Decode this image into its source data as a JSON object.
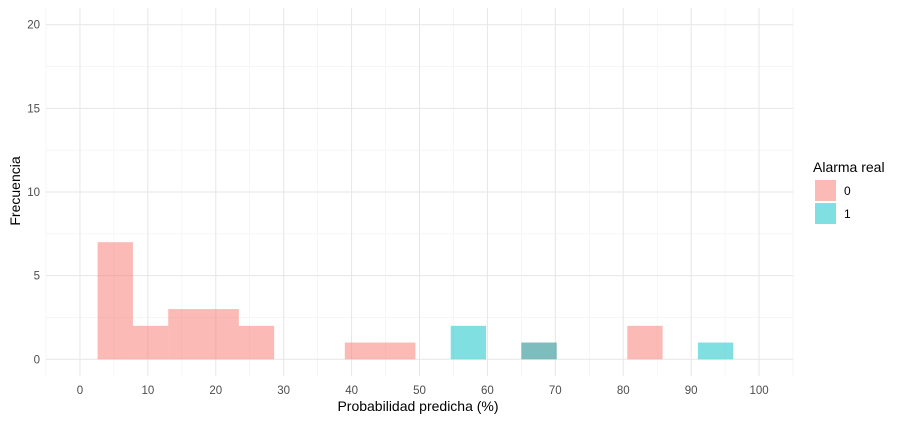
{
  "chart_data": {
    "type": "histogram",
    "xlabel": "Probabilidad predicha (%)",
    "ylabel": "Frecuencia",
    "xlim": [
      -5,
      105
    ],
    "ylim": [
      -1,
      21
    ],
    "x_ticks": [
      0,
      10,
      20,
      30,
      40,
      50,
      60,
      70,
      80,
      90,
      100
    ],
    "y_ticks": [
      0,
      5,
      10,
      15,
      20
    ],
    "grid": true,
    "legend_position": "right",
    "legend_title": "Alarma real",
    "bin_width": 5.2,
    "series": [
      {
        "name": "0",
        "color": "#F8766D",
        "bins": [
          {
            "x0": 2.6,
            "x1": 7.8,
            "count": 7
          },
          {
            "x0": 7.8,
            "x1": 13.0,
            "count": 2
          },
          {
            "x0": 13.0,
            "x1": 18.2,
            "count": 3
          },
          {
            "x0": 18.2,
            "x1": 23.4,
            "count": 3
          },
          {
            "x0": 23.4,
            "x1": 28.6,
            "count": 2
          },
          {
            "x0": 39.0,
            "x1": 44.2,
            "count": 1
          },
          {
            "x0": 44.2,
            "x1": 49.4,
            "count": 1
          },
          {
            "x0": 65.0,
            "x1": 70.2,
            "count": 1
          },
          {
            "x0": 80.6,
            "x1": 85.8,
            "count": 2
          }
        ]
      },
      {
        "name": "1",
        "color": "#00BFC4",
        "bins": [
          {
            "x0": 54.6,
            "x1": 59.8,
            "count": 2
          },
          {
            "x0": 65.0,
            "x1": 70.2,
            "count": 1
          },
          {
            "x0": 91.0,
            "x1": 96.2,
            "count": 1
          }
        ]
      }
    ]
  }
}
